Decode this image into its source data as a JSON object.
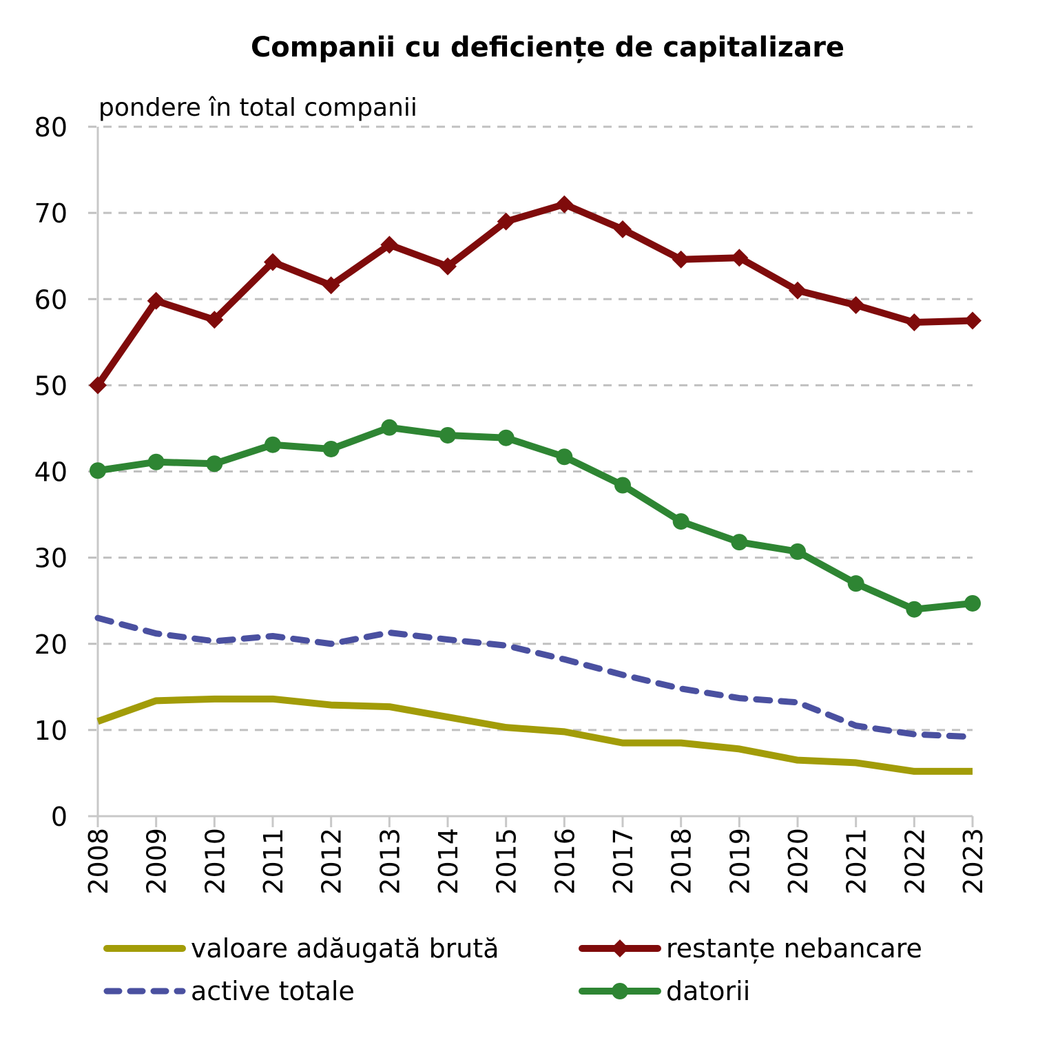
{
  "chart_data": {
    "type": "line",
    "title": "Companii cu deficiențe de capitalizare",
    "ylabel": "pondere în total companii",
    "xlabel": "",
    "ylim": [
      0,
      80
    ],
    "yticks": [
      0,
      10,
      20,
      30,
      40,
      50,
      60,
      70,
      80
    ],
    "grid": true,
    "legend_position": "bottom",
    "x": [
      "2008",
      "2009",
      "2010",
      "2011",
      "2012",
      "2013",
      "2014",
      "2015",
      "2016",
      "2017",
      "2018",
      "2019",
      "2020",
      "2021",
      "2022",
      "2023"
    ],
    "series": [
      {
        "name": "valoare adăugată brută",
        "color": "#a29c08",
        "style": "solid",
        "marker": "none",
        "values": [
          11.0,
          13.4,
          13.6,
          13.6,
          12.9,
          12.7,
          11.5,
          10.3,
          9.8,
          8.5,
          8.5,
          7.8,
          6.5,
          6.2,
          5.2,
          5.2
        ]
      },
      {
        "name": "restanțe nebancare",
        "color": "#7f0b0b",
        "style": "solid",
        "marker": "diamond",
        "values": [
          50.0,
          59.8,
          57.6,
          64.3,
          61.6,
          66.3,
          63.8,
          69.0,
          71.0,
          68.1,
          64.6,
          64.8,
          61.0,
          59.3,
          57.3,
          57.5
        ]
      },
      {
        "name": "active totale",
        "color": "#4a50a0",
        "style": "dashed",
        "marker": "none",
        "values": [
          23.0,
          21.2,
          20.3,
          20.9,
          20.0,
          21.3,
          20.5,
          19.8,
          18.2,
          16.4,
          14.8,
          13.7,
          13.2,
          10.5,
          9.5,
          9.2
        ]
      },
      {
        "name": "datorii",
        "color": "#2e8533",
        "style": "solid",
        "marker": "circle",
        "values": [
          40.1,
          41.1,
          40.9,
          43.1,
          42.6,
          45.1,
          44.2,
          43.9,
          41.7,
          38.4,
          34.2,
          31.8,
          30.7,
          27.0,
          24.0,
          24.7
        ]
      }
    ]
  }
}
